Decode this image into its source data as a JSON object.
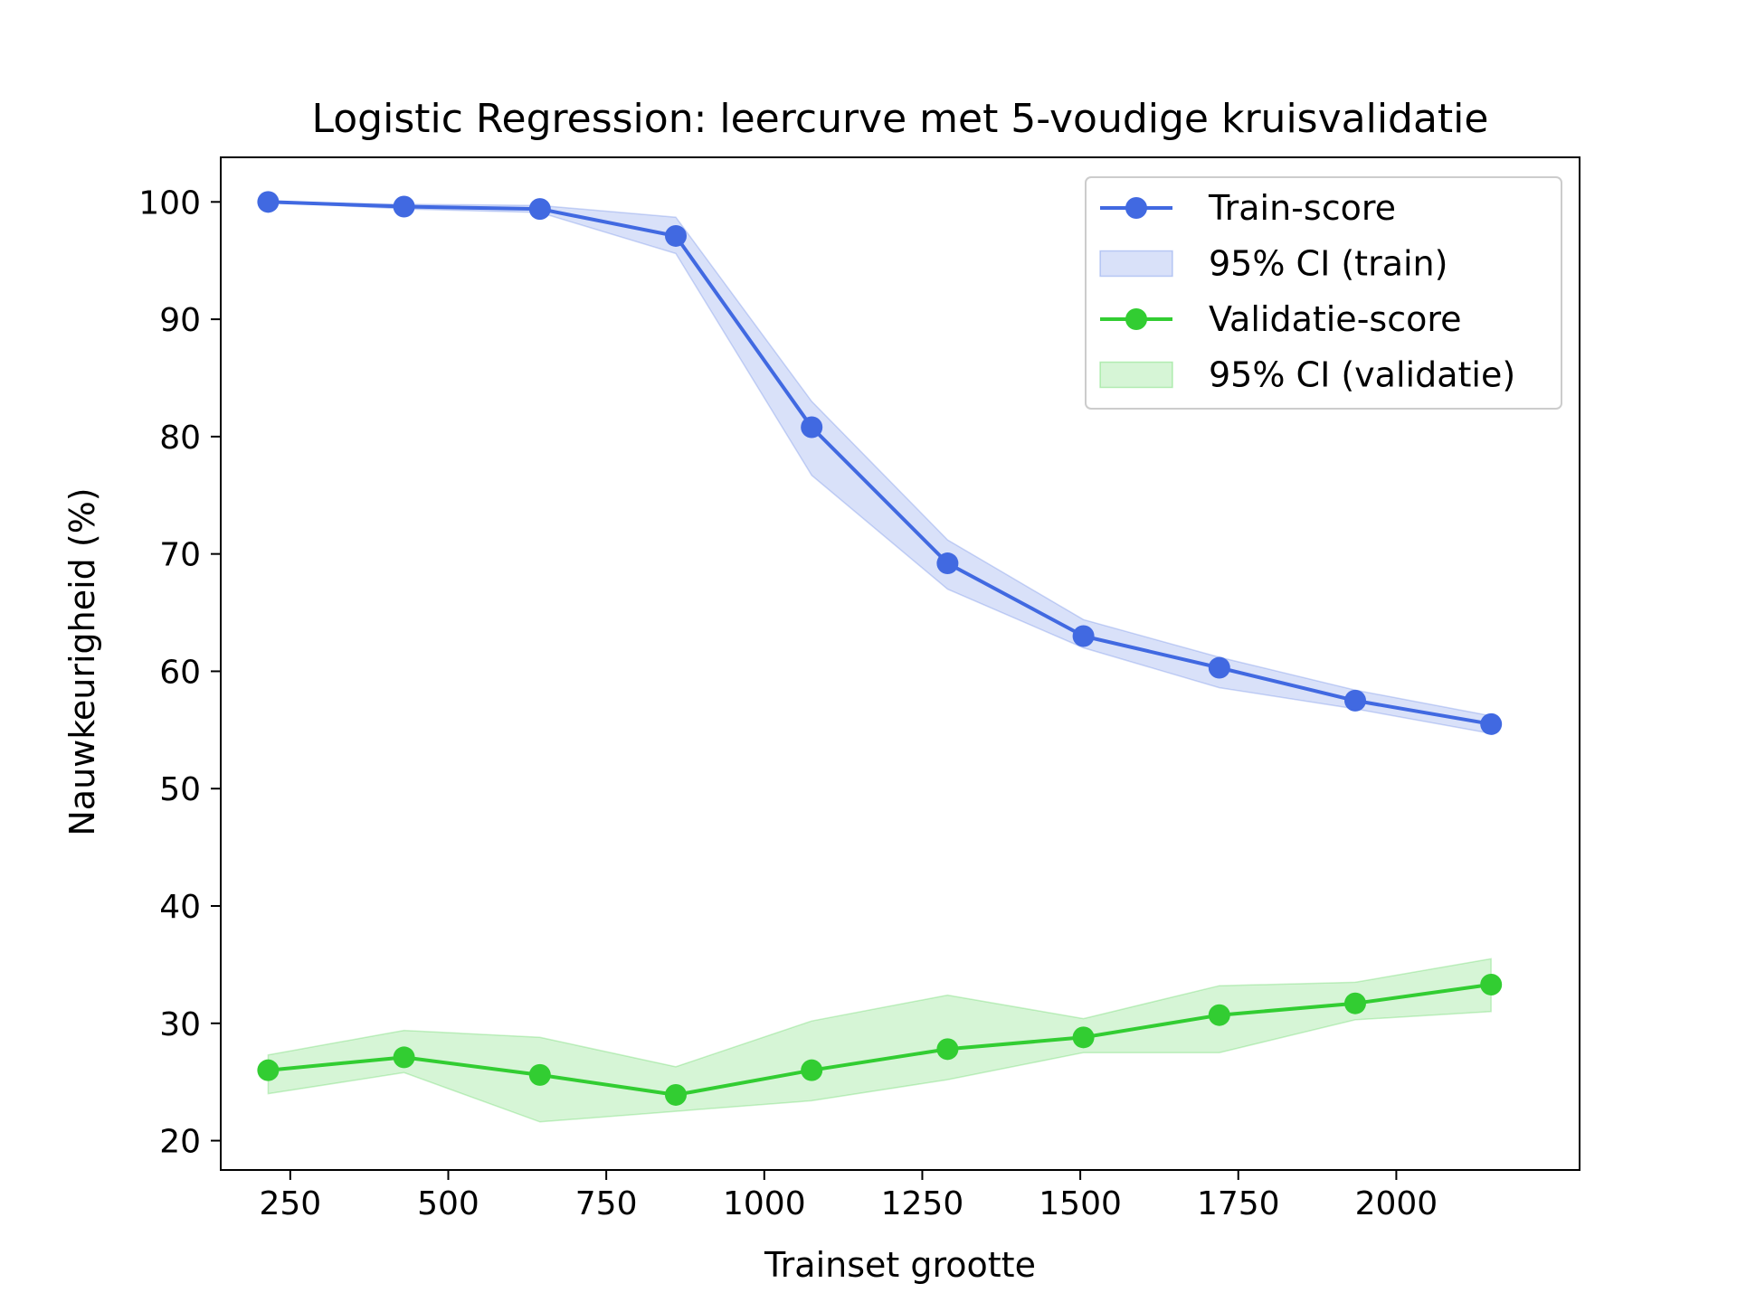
{
  "chart_data": {
    "type": "line",
    "title": "Logistic Regression: leercurve met 5-voudige kruisvalidatie",
    "xlabel": "Trainset grootte",
    "ylabel": "Nauwkeurigheid (%)",
    "xlim": [
      140,
      2290
    ],
    "ylim": [
      17.5,
      103.8
    ],
    "xticks": [
      250,
      500,
      750,
      1000,
      1250,
      1500,
      1750,
      2000
    ],
    "yticks": [
      20,
      30,
      40,
      50,
      60,
      70,
      80,
      90,
      100
    ],
    "x": [
      215,
      430,
      645,
      860,
      1075,
      1290,
      1505,
      1720,
      1935,
      2150
    ],
    "grid": false,
    "legend_position": "top-right",
    "series": [
      {
        "name": "Train-score",
        "color": "#4169e1",
        "values": [
          100.0,
          99.6,
          99.4,
          97.1,
          80.8,
          69.2,
          63.0,
          60.3,
          57.5,
          55.5
        ],
        "ci_name": "95% CI (train)",
        "ci_lower": [
          100.0,
          99.4,
          99.1,
          95.6,
          76.7,
          67.0,
          62.0,
          58.6,
          56.8,
          54.7
        ],
        "ci_upper": [
          100.0,
          99.8,
          99.7,
          98.7,
          83.0,
          71.2,
          64.4,
          61.2,
          58.4,
          56.2
        ]
      },
      {
        "name": "Validatie-score",
        "color": "#32cd32",
        "values": [
          26.0,
          27.1,
          25.6,
          23.9,
          26.0,
          27.8,
          28.8,
          30.7,
          31.7,
          33.3
        ],
        "ci_name": "95% CI (validatie)",
        "ci_lower": [
          24.0,
          25.8,
          21.6,
          22.5,
          23.4,
          25.2,
          27.5,
          27.5,
          30.3,
          31.0
        ],
        "ci_upper": [
          27.3,
          29.4,
          28.8,
          26.3,
          30.2,
          32.4,
          30.4,
          33.2,
          33.5,
          35.5
        ]
      }
    ]
  }
}
